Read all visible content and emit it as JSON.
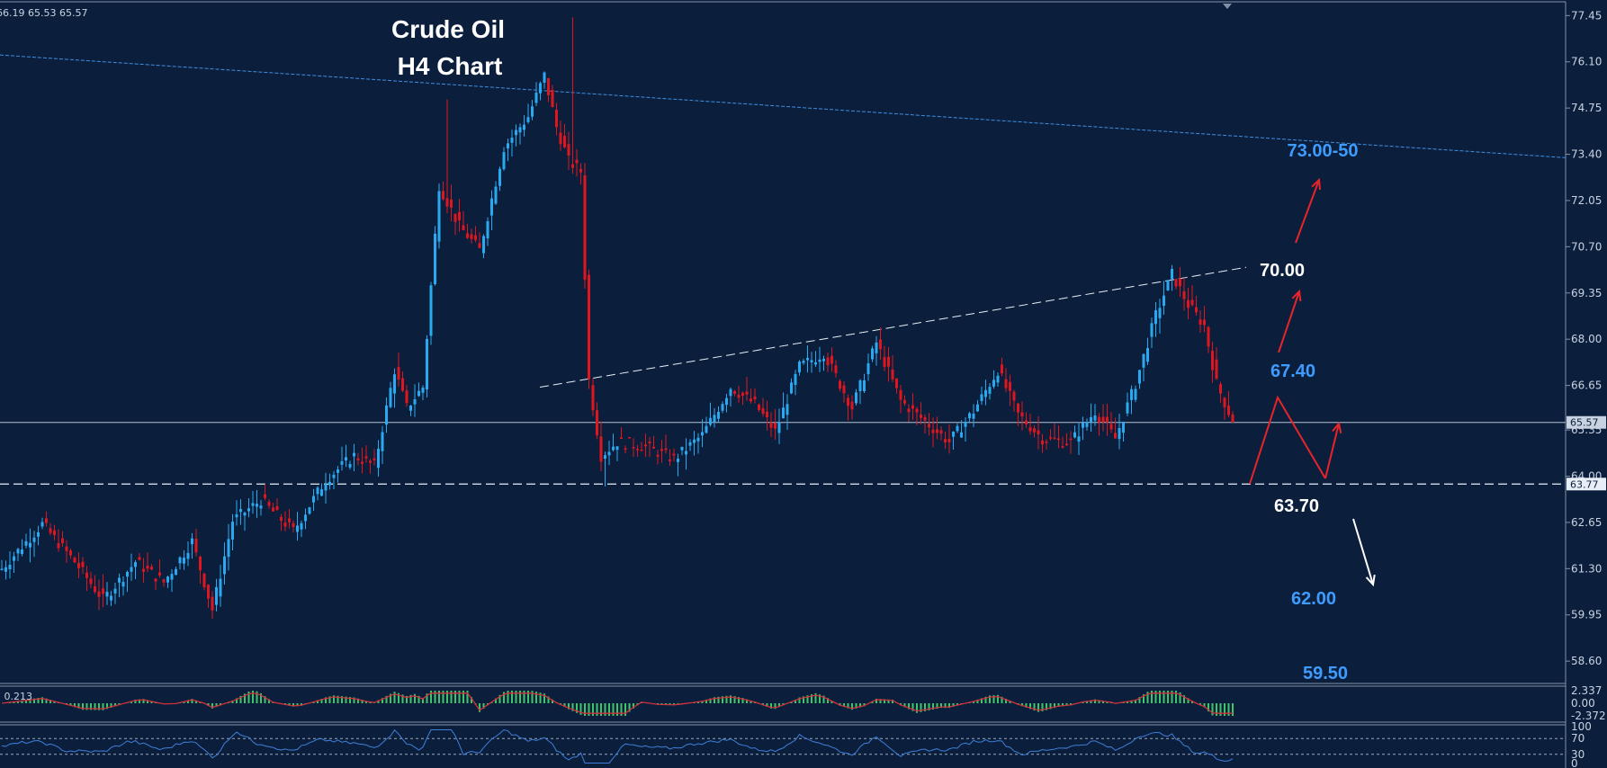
{
  "ohlc_readout": "66.19 65.53 65.57",
  "colors": {
    "background": "#0b1f3d",
    "bull": "#2aa8f0",
    "bear": "#e0161f",
    "level_blue": "#3f9cff",
    "level_white": "#ffffff",
    "arrow_red": "#e8242a",
    "macd_hist": "#3fc46a",
    "macd_signal": "#d0303a",
    "rsi_line": "#3f7fd8"
  },
  "chart_data": {
    "type": "candlestick",
    "title": [
      "Crude Oil",
      "H4 Chart"
    ],
    "price_axis": {
      "ticks": [
        "77.45",
        "76.10",
        "74.75",
        "73.40",
        "72.05",
        "70.70",
        "69.35",
        "68.00",
        "66.65",
        "65.35",
        "64.00",
        "62.65",
        "61.30",
        "59.95",
        "58.60"
      ],
      "ylim": [
        58.0,
        77.8
      ]
    },
    "current_price": "65.57",
    "support_price": "63.77",
    "candle_path": [
      {
        "i": 0,
        "p": 61.3
      },
      {
        "i": 10,
        "p": 62.6
      },
      {
        "i": 18,
        "p": 61.5
      },
      {
        "i": 25,
        "p": 60.4
      },
      {
        "i": 33,
        "p": 61.5
      },
      {
        "i": 40,
        "p": 60.9
      },
      {
        "i": 47,
        "p": 62.1
      },
      {
        "i": 52,
        "p": 60.1
      },
      {
        "i": 57,
        "p": 62.7
      },
      {
        "i": 64,
        "p": 63.3
      },
      {
        "i": 72,
        "p": 62.4
      },
      {
        "i": 80,
        "p": 63.9
      },
      {
        "i": 87,
        "p": 64.6
      },
      {
        "i": 92,
        "p": 64.3
      },
      {
        "i": 97,
        "p": 67.1
      },
      {
        "i": 100,
        "p": 66.0
      },
      {
        "i": 104,
        "p": 66.6
      },
      {
        "i": 108,
        "p": 72.5
      },
      {
        "i": 113,
        "p": 71.3
      },
      {
        "i": 118,
        "p": 70.6
      },
      {
        "i": 124,
        "p": 73.6
      },
      {
        "i": 130,
        "p": 74.5
      },
      {
        "i": 134,
        "p": 75.7
      },
      {
        "i": 137,
        "p": 74.2
      },
      {
        "i": 140,
        "p": 73.2
      },
      {
        "i": 143,
        "p": 72.9
      },
      {
        "i": 145,
        "p": 66.8
      },
      {
        "i": 148,
        "p": 64.6
      },
      {
        "i": 152,
        "p": 65.0
      },
      {
        "i": 158,
        "p": 64.9
      },
      {
        "i": 166,
        "p": 64.5
      },
      {
        "i": 173,
        "p": 65.2
      },
      {
        "i": 180,
        "p": 66.6
      },
      {
        "i": 186,
        "p": 66.1
      },
      {
        "i": 191,
        "p": 65.3
      },
      {
        "i": 197,
        "p": 67.2
      },
      {
        "i": 203,
        "p": 67.6
      },
      {
        "i": 210,
        "p": 66.0
      },
      {
        "i": 216,
        "p": 67.9
      },
      {
        "i": 222,
        "p": 66.2
      },
      {
        "i": 228,
        "p": 65.6
      },
      {
        "i": 234,
        "p": 65.0
      },
      {
        "i": 240,
        "p": 65.9
      },
      {
        "i": 246,
        "p": 67.1
      },
      {
        "i": 251,
        "p": 65.8
      },
      {
        "i": 257,
        "p": 65.1
      },
      {
        "i": 264,
        "p": 65.0
      },
      {
        "i": 270,
        "p": 65.9
      },
      {
        "i": 275,
        "p": 65.1
      },
      {
        "i": 280,
        "p": 66.7
      },
      {
        "i": 285,
        "p": 68.7
      },
      {
        "i": 289,
        "p": 69.9
      },
      {
        "i": 293,
        "p": 69.0
      },
      {
        "i": 297,
        "p": 68.4
      },
      {
        "i": 300,
        "p": 66.7
      },
      {
        "i": 304,
        "p": 65.6
      }
    ],
    "spikes": [
      {
        "i": 110,
        "high": 75.0
      },
      {
        "i": 141,
        "high": 77.4
      },
      {
        "i": 149,
        "low": 63.7
      }
    ],
    "resistance_line": {
      "label": "73.00-50",
      "from_price": 76.3,
      "to_price": 73.3
    },
    "trendline": {
      "from_price": 66.6,
      "to_price": 70.1
    },
    "levels": [
      {
        "label": "73.00-50",
        "color": "blue"
      },
      {
        "label": "70.00",
        "color": "white"
      },
      {
        "label": "67.40",
        "color": "blue"
      },
      {
        "label": "63.70",
        "color": "white"
      },
      {
        "label": "62.00",
        "color": "blue"
      },
      {
        "label": "59.50",
        "color": "blue"
      }
    ],
    "macd": {
      "label": "7 0.213",
      "ticks": [
        "2.337",
        "0.00",
        "-2.372"
      ]
    },
    "rsi": {
      "ticks": [
        "100",
        "70",
        "30",
        "0"
      ]
    }
  }
}
